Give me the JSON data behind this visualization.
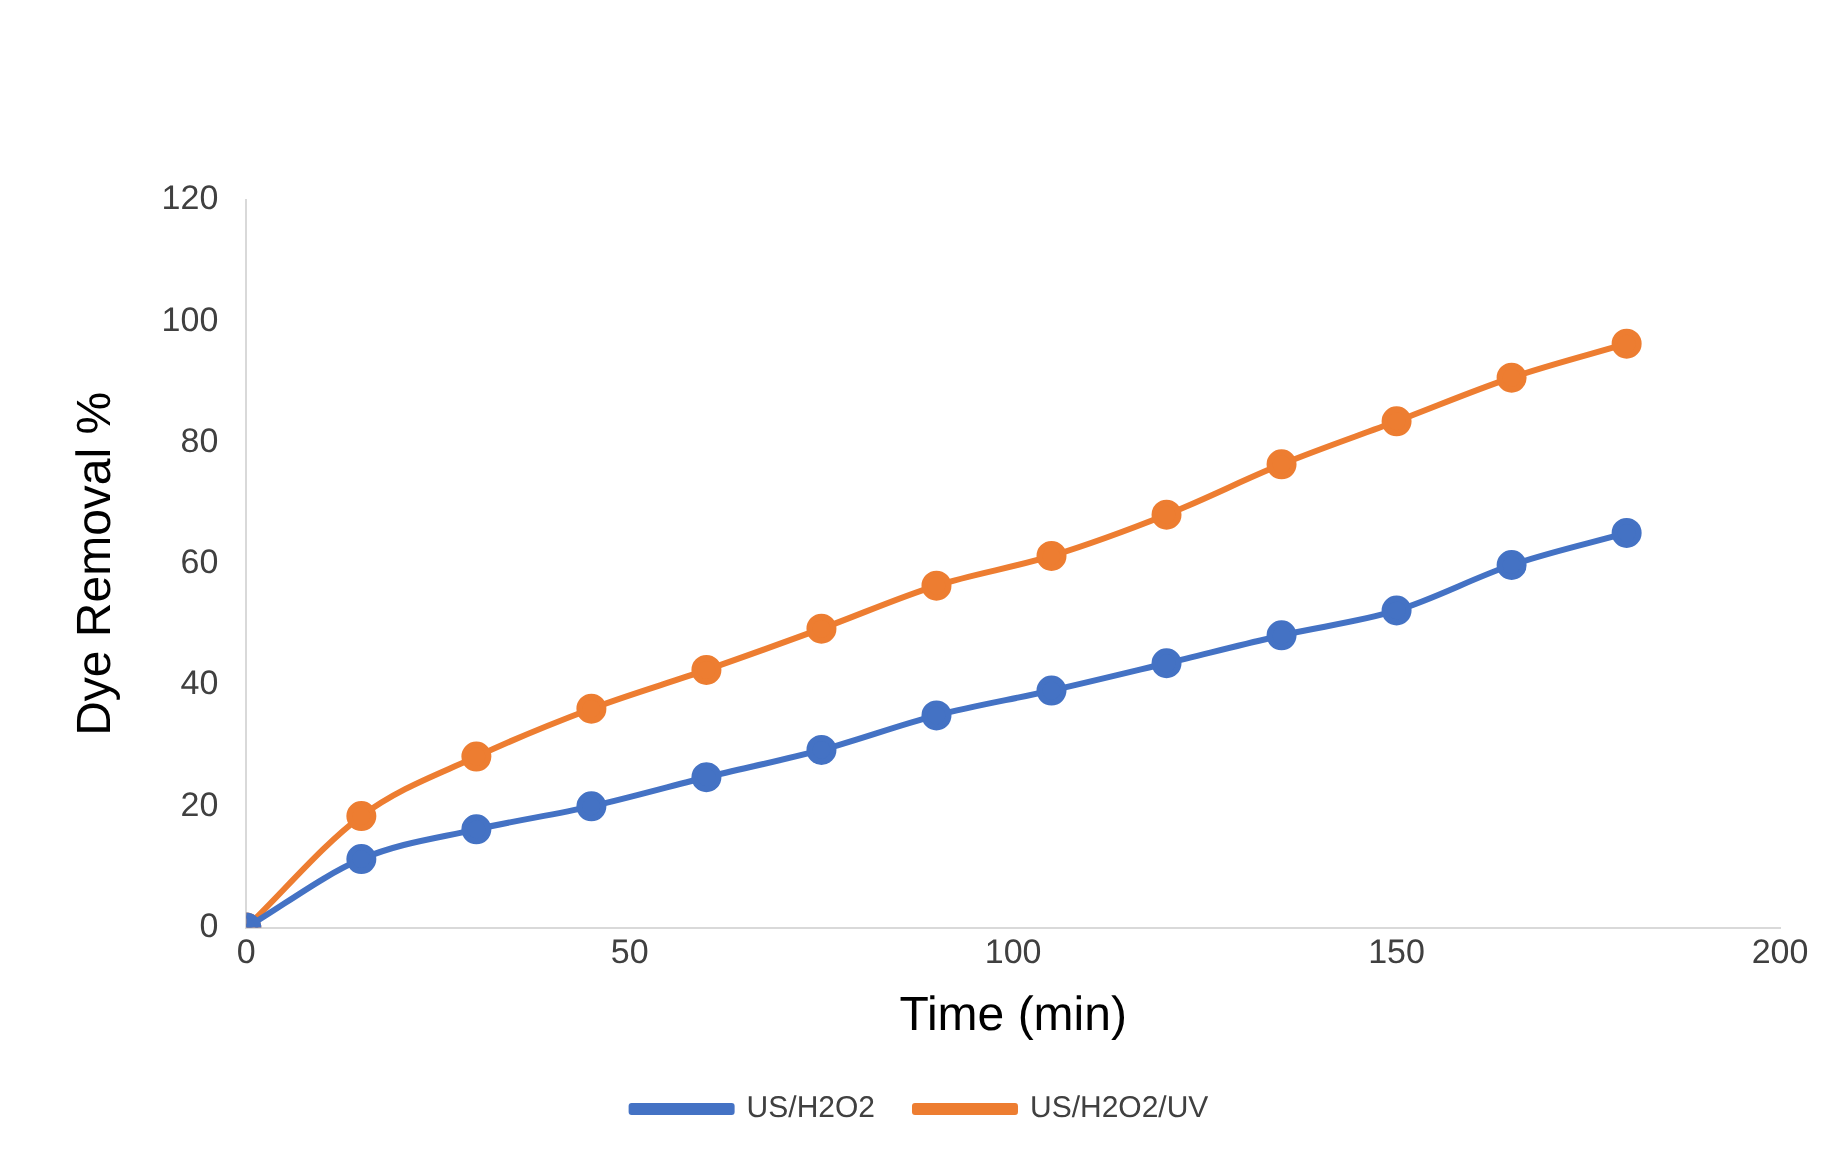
{
  "chart_data": {
    "type": "line",
    "xlabel": "Time (min)",
    "ylabel": "Dye Removal %",
    "x": [
      0,
      15,
      30,
      45,
      60,
      75,
      90,
      105,
      120,
      135,
      150,
      165,
      180
    ],
    "series": [
      {
        "name": "US/H2O2",
        "color": "#4472c4",
        "values": [
          0,
          11.3,
          16.2,
          20,
          24.8,
          29.3,
          35,
          39.1,
          43.6,
          48.2,
          52.3,
          59.8,
          65.1
        ]
      },
      {
        "name": "US/H2O2/UV",
        "color": "#ed7d31",
        "values": [
          0,
          18.4,
          28.2,
          36.1,
          42.5,
          49.3,
          56.4,
          61.3,
          68.1,
          76.4,
          83.5,
          90.7,
          96.3
        ]
      }
    ],
    "xlim": [
      0,
      200
    ],
    "xticks": [
      0,
      50,
      100,
      150,
      200
    ],
    "ylim": [
      0,
      120
    ],
    "yticks": [
      0,
      20,
      40,
      60,
      80,
      100,
      120
    ],
    "grid": false,
    "legend": "bottom",
    "marker": "circle",
    "line_style": "solid"
  }
}
